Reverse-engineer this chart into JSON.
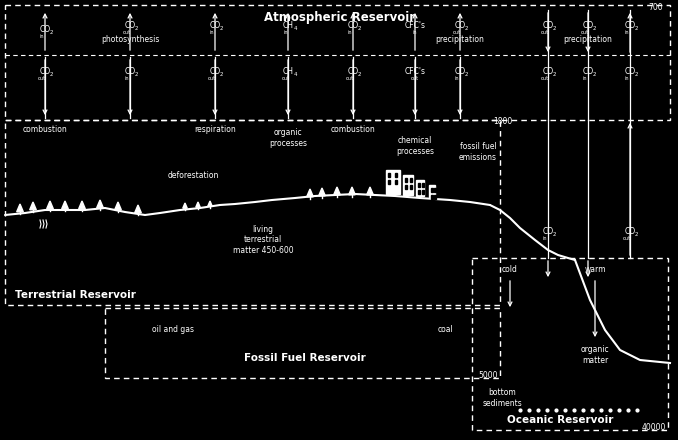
{
  "bg": "#000000",
  "fg": "#ffffff",
  "figsize": [
    6.78,
    4.4
  ],
  "dpi": 100,
  "atm_title": "Atmospheric Reservoir",
  "terr_title": "Terrestrial Reservoir",
  "fossil_title": "Fossil Fuel Reservoir",
  "ocean_title": "Oceanic Reservoir",
  "n700": "700",
  "n1800": "1800",
  "n5000": "5000",
  "n40000": "40000",
  "combustion": "combustion",
  "photosynthesis": "photosynthesis",
  "respiration": "respiration",
  "organic_proc": "organic\nprocesses",
  "combustion2": "combustion",
  "chem_proc": "chemical\nprocesses",
  "fossil_emis": "fossil fuel\nemissions",
  "deforestation": "deforestation",
  "living_matter": "living\nterrestrial\nmatter 450-600",
  "oil_gas": "oil and gas",
  "coal": "coal",
  "cold": "cold",
  "warm": "warm",
  "organic_matter": "organic\nmatter",
  "bottom_sed": "bottom\nsediments",
  "precipitation": "precipitation"
}
